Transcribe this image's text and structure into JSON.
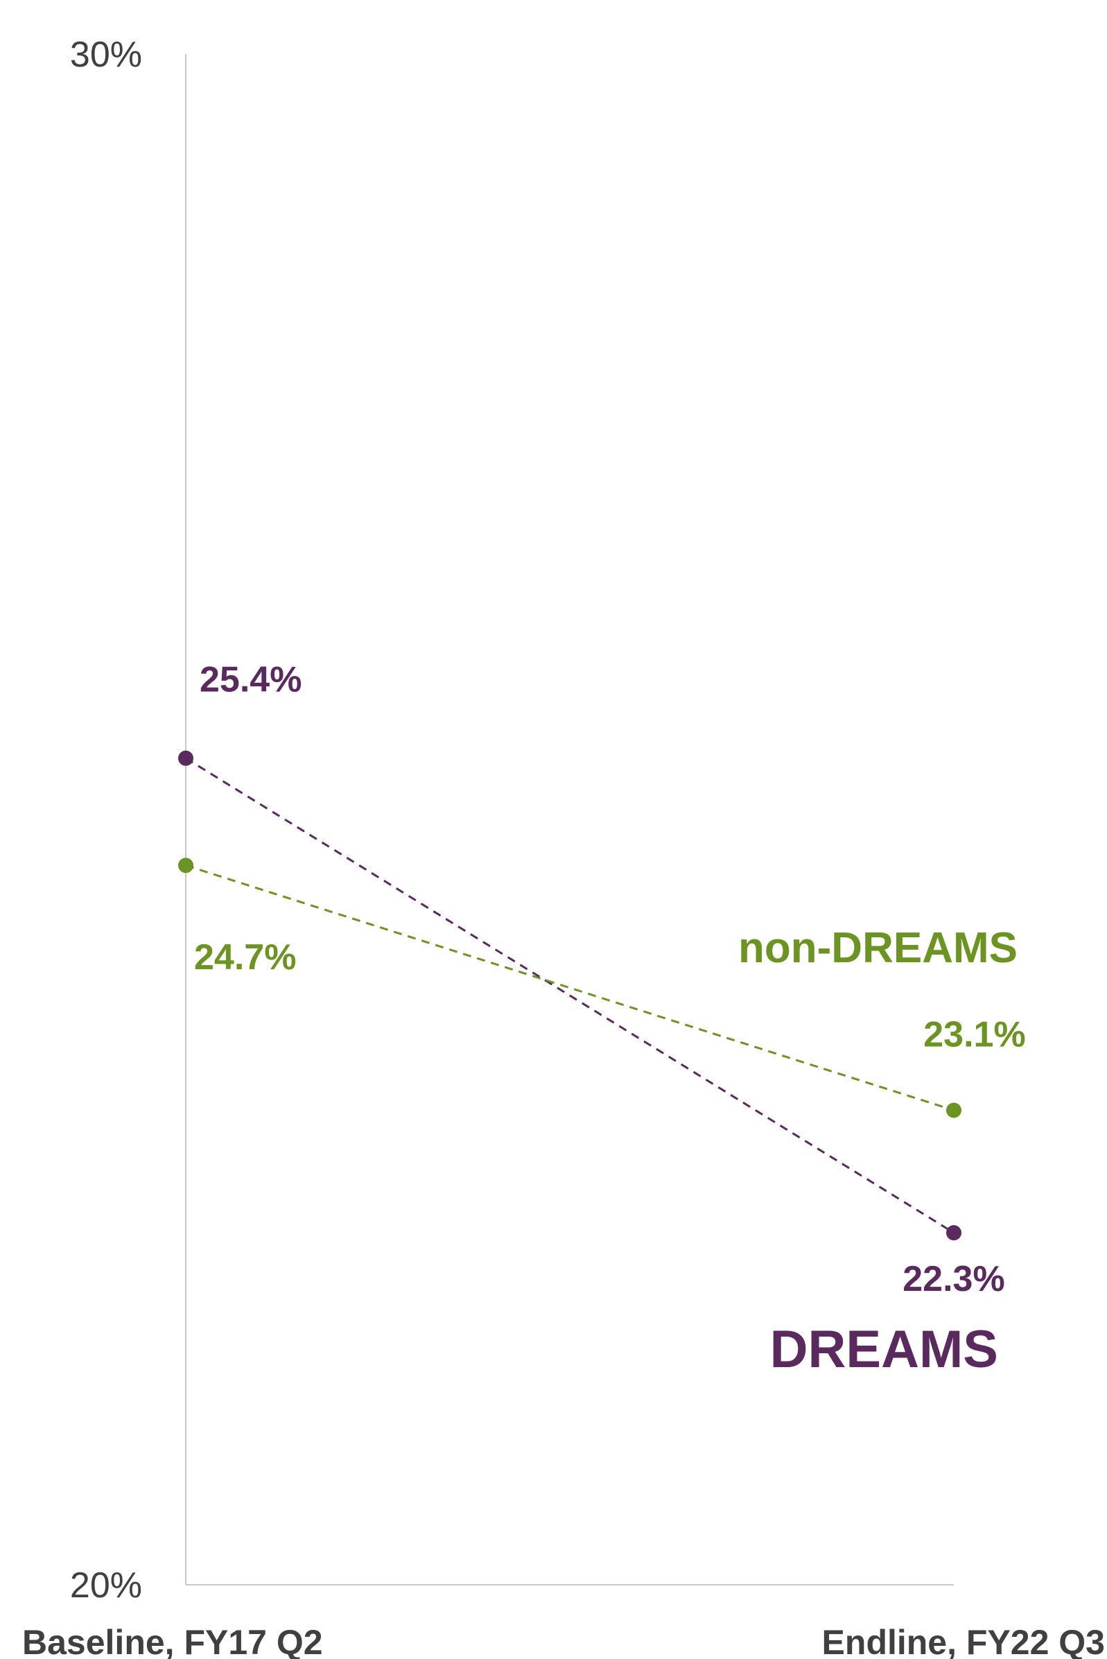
{
  "chart_data": {
    "type": "line",
    "categories": [
      "Baseline, FY17 Q2",
      "Endline, FY22 Q3"
    ],
    "ylim": [
      20,
      30
    ],
    "y_ticks": [
      "30%",
      "20%"
    ],
    "grid": false,
    "series": [
      {
        "name": "DREAMS",
        "values": [
          25.4,
          22.3
        ],
        "labels": [
          "25.4%",
          "22.3%"
        ],
        "color": "#5a2a5e",
        "line_style": "dashed"
      },
      {
        "name": "non-DREAMS",
        "values": [
          24.7,
          23.1
        ],
        "labels": [
          "24.7%",
          "23.1%"
        ],
        "color": "#6b9423",
        "line_style": "dashed"
      }
    ]
  }
}
